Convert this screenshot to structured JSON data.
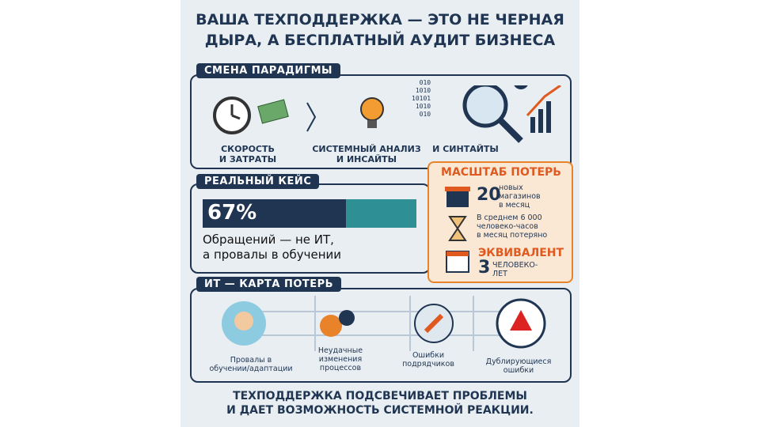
{
  "title": "ВАША ТЕХПОДДЕРЖКА — ЭТО НЕ ЧЕРНАЯ\nДЫРА, А БЕСПЛАТНЫЙ АУДИТ БИЗНЕСА",
  "paradigm": {
    "heading": "СМЕНА ПАРАДИГМЫ",
    "items": [
      "СКОРОСТЬ\nИ ЗАТРАТЫ",
      "СИСТЕМНЫЙ АНАЛИЗ\nИ ИНСАЙТЫ",
      "И СИНТАЙТЫ"
    ],
    "binary": "010\n1010\n10101\n1010\n010"
  },
  "case": {
    "heading": "РЕАЛЬНЫЙ КЕЙС",
    "stat": {
      "value": 67,
      "label": "67%"
    },
    "caption": "Обращений — не ИТ,\nа провалы в обучении"
  },
  "losses": {
    "heading": "МАСШТАБ ПОТЕРЬ",
    "stores_number": 20,
    "stores_text": "новых\nмагазинов\nв месяц",
    "hours_text": "В среднем 6 000\nчеловеко-часов\nв месяц потеряно",
    "equivalent_heading": "ЭКВИВАЛЕНТ",
    "years_number": 3,
    "years_text": "ЧЕЛОВЕКО-\nЛЕТ"
  },
  "map": {
    "heading": "ИТ — КАРТА ПОТЕРЬ",
    "items": [
      "Провалы в\nобучении/адаптации",
      "Неудачные\nизменения\nпроцессов",
      "Ошибки\nподрядчиков",
      "Дублирующиеся\nошибки"
    ]
  },
  "footer": "ТЕХПОДДЕРЖКА ПОДСВЕЧИВАЕТ ПРОБЛЕМЫ\nИ ДАЕТ ВОЗМОЖНОСТЬ СИСТЕМНОЙ РЕАКЦИИ."
}
